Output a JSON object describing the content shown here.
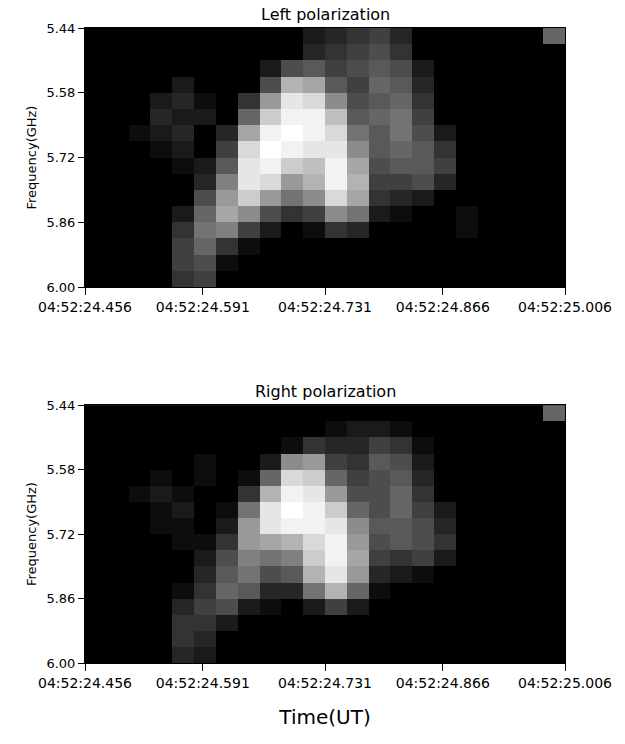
{
  "chart_data": [
    {
      "type": "heatmap",
      "title": "Left polarization",
      "y_label": "Frequency(GHz)",
      "color": "gray",
      "xlim": [
        24.456,
        25.006
      ],
      "xticks": [
        {
          "value": 24.456,
          "label": "04:52:24.456"
        },
        {
          "value": 24.591,
          "label": "04:52:24.591"
        },
        {
          "value": 24.731,
          "label": "04:52:24.731"
        },
        {
          "value": 24.866,
          "label": "04:52:24.866"
        },
        {
          "value": 25.006,
          "label": "04:52:25.006"
        }
      ],
      "ylim": [
        6.0,
        5.44
      ],
      "yticks": [
        5.44,
        5.58,
        5.72,
        5.86,
        {
          "value": 6.0,
          "label": "6.00"
        }
      ],
      "zlim": [
        0,
        100
      ],
      "x": [
        24.4685,
        24.4935,
        24.5185,
        24.5435,
        24.5685,
        24.5935,
        24.6185,
        24.6435,
        24.6685,
        24.6935,
        24.7185,
        24.7435,
        24.7685,
        24.7935,
        24.8185,
        24.8435,
        24.8685,
        24.8935,
        24.9185,
        24.9435,
        24.9685,
        24.9935
      ],
      "y": [
        5.4575,
        5.4925,
        5.5275,
        5.5625,
        5.5975,
        5.6325,
        5.6675,
        5.7025,
        5.7375,
        5.7725,
        5.8075,
        5.8425,
        5.8775,
        5.9125,
        5.9475,
        5.9825
      ],
      "z": [
        [
          0,
          0,
          0,
          0,
          0,
          0,
          0,
          0,
          0,
          0,
          10,
          15,
          20,
          25,
          15,
          0,
          0,
          0,
          0,
          0,
          0,
          40
        ],
        [
          0,
          0,
          0,
          0,
          0,
          0,
          0,
          0,
          0,
          0,
          15,
          20,
          25,
          30,
          20,
          0,
          0,
          0,
          0,
          0,
          0,
          0
        ],
        [
          0,
          0,
          0,
          0,
          0,
          0,
          0,
          0,
          10,
          30,
          35,
          25,
          30,
          35,
          30,
          10,
          0,
          0,
          0,
          0,
          0,
          0
        ],
        [
          0,
          0,
          0,
          0,
          10,
          0,
          0,
          0,
          30,
          70,
          65,
          35,
          25,
          40,
          35,
          15,
          0,
          0,
          0,
          0,
          0,
          0
        ],
        [
          0,
          0,
          0,
          10,
          15,
          5,
          0,
          20,
          60,
          90,
          85,
          55,
          30,
          35,
          40,
          20,
          0,
          0,
          0,
          0,
          0,
          0
        ],
        [
          0,
          0,
          0,
          15,
          10,
          10,
          0,
          40,
          80,
          95,
          95,
          75,
          35,
          40,
          45,
          25,
          0,
          0,
          0,
          0,
          0,
          0
        ],
        [
          0,
          0,
          5,
          10,
          15,
          0,
          15,
          65,
          95,
          100,
          95,
          85,
          45,
          35,
          45,
          30,
          10,
          0,
          0,
          0,
          0,
          0
        ],
        [
          0,
          0,
          0,
          5,
          10,
          0,
          25,
          85,
          100,
          95,
          90,
          90,
          55,
          35,
          40,
          35,
          20,
          0,
          0,
          0,
          0,
          0
        ],
        [
          0,
          0,
          0,
          0,
          5,
          10,
          35,
          90,
          95,
          80,
          75,
          95,
          65,
          30,
          35,
          35,
          25,
          0,
          0,
          0,
          0,
          0
        ],
        [
          0,
          0,
          0,
          0,
          0,
          15,
          50,
          90,
          85,
          60,
          70,
          95,
          70,
          25,
          25,
          30,
          15,
          0,
          0,
          0,
          0,
          0
        ],
        [
          0,
          0,
          0,
          0,
          0,
          30,
          60,
          80,
          60,
          45,
          55,
          85,
          65,
          20,
          15,
          10,
          0,
          0,
          0,
          0,
          0,
          0
        ],
        [
          0,
          0,
          0,
          0,
          10,
          40,
          65,
          55,
          30,
          20,
          25,
          55,
          45,
          10,
          5,
          0,
          0,
          5,
          0,
          0,
          0,
          0
        ],
        [
          0,
          0,
          0,
          0,
          20,
          45,
          50,
          25,
          10,
          0,
          5,
          20,
          15,
          0,
          0,
          0,
          0,
          5,
          0,
          0,
          0,
          0
        ],
        [
          0,
          0,
          0,
          0,
          25,
          40,
          20,
          5,
          0,
          0,
          0,
          0,
          0,
          0,
          0,
          0,
          0,
          0,
          0,
          0,
          0,
          0
        ],
        [
          0,
          0,
          0,
          0,
          25,
          30,
          5,
          0,
          0,
          0,
          0,
          0,
          0,
          0,
          0,
          0,
          0,
          0,
          0,
          0,
          0,
          0
        ],
        [
          0,
          0,
          0,
          0,
          20,
          25,
          0,
          0,
          0,
          0,
          0,
          0,
          0,
          0,
          0,
          0,
          0,
          0,
          0,
          0,
          0,
          0
        ]
      ]
    },
    {
      "type": "heatmap",
      "title": "Right polarization",
      "x_label": "Time(UT)",
      "y_label": "Frequency(GHz)",
      "color": "gray",
      "xlim": [
        24.456,
        25.006
      ],
      "xticks": [
        {
          "value": 24.456,
          "label": "04:52:24.456"
        },
        {
          "value": 24.591,
          "label": "04:52:24.591"
        },
        {
          "value": 24.731,
          "label": "04:52:24.731"
        },
        {
          "value": 24.866,
          "label": "04:52:24.866"
        },
        {
          "value": 25.006,
          "label": "04:52:25.006"
        }
      ],
      "ylim": [
        6.0,
        5.44
      ],
      "yticks": [
        5.44,
        5.58,
        5.72,
        5.86,
        {
          "value": 6.0,
          "label": "6.00"
        }
      ],
      "zlim": [
        0,
        100
      ],
      "x": [
        24.4685,
        24.4935,
        24.5185,
        24.5435,
        24.5685,
        24.5935,
        24.6185,
        24.6435,
        24.6685,
        24.6935,
        24.7185,
        24.7435,
        24.7685,
        24.7935,
        24.8185,
        24.8435,
        24.8685,
        24.8935,
        24.9185,
        24.9435,
        24.9685,
        24.9935
      ],
      "y": [
        5.4575,
        5.4925,
        5.5275,
        5.5625,
        5.5975,
        5.6325,
        5.6675,
        5.7025,
        5.7375,
        5.7725,
        5.8075,
        5.8425,
        5.8775,
        5.9125,
        5.9475,
        5.9825
      ],
      "z": [
        [
          0,
          0,
          0,
          0,
          0,
          0,
          0,
          0,
          0,
          0,
          0,
          0,
          0,
          0,
          0,
          0,
          0,
          0,
          0,
          0,
          0,
          40
        ],
        [
          0,
          0,
          0,
          0,
          0,
          0,
          0,
          0,
          0,
          0,
          0,
          5,
          10,
          10,
          5,
          0,
          0,
          0,
          0,
          0,
          0,
          0
        ],
        [
          0,
          0,
          0,
          0,
          0,
          0,
          0,
          0,
          0,
          5,
          20,
          15,
          15,
          25,
          20,
          5,
          0,
          0,
          0,
          0,
          0,
          0
        ],
        [
          0,
          0,
          0,
          0,
          0,
          5,
          0,
          0,
          10,
          55,
          60,
          25,
          20,
          35,
          30,
          10,
          0,
          0,
          0,
          0,
          0,
          0
        ],
        [
          0,
          0,
          0,
          5,
          0,
          5,
          0,
          5,
          40,
          85,
          80,
          40,
          25,
          30,
          35,
          15,
          0,
          0,
          0,
          0,
          0,
          0
        ],
        [
          0,
          0,
          5,
          10,
          5,
          0,
          0,
          20,
          70,
          95,
          90,
          60,
          30,
          30,
          40,
          20,
          0,
          0,
          0,
          0,
          0,
          0
        ],
        [
          0,
          0,
          0,
          5,
          10,
          0,
          5,
          45,
          90,
          100,
          95,
          80,
          40,
          30,
          40,
          25,
          10,
          0,
          0,
          0,
          0,
          0
        ],
        [
          0,
          0,
          0,
          5,
          5,
          0,
          10,
          60,
          90,
          95,
          95,
          90,
          55,
          35,
          35,
          30,
          15,
          0,
          0,
          0,
          0,
          0
        ],
        [
          0,
          0,
          0,
          0,
          5,
          5,
          20,
          60,
          65,
          70,
          85,
          95,
          60,
          30,
          35,
          30,
          20,
          0,
          0,
          0,
          0,
          0
        ],
        [
          0,
          0,
          0,
          0,
          0,
          10,
          30,
          50,
          45,
          50,
          80,
          95,
          65,
          25,
          20,
          25,
          10,
          0,
          0,
          0,
          0,
          0
        ],
        [
          0,
          0,
          0,
          0,
          0,
          15,
          35,
          45,
          30,
          35,
          70,
          90,
          60,
          15,
          10,
          5,
          0,
          0,
          0,
          0,
          0,
          0
        ],
        [
          0,
          0,
          0,
          0,
          5,
          20,
          40,
          35,
          15,
          15,
          45,
          70,
          40,
          5,
          0,
          0,
          0,
          0,
          0,
          0,
          0,
          0
        ],
        [
          0,
          0,
          0,
          0,
          15,
          25,
          30,
          10,
          5,
          0,
          10,
          25,
          10,
          0,
          0,
          0,
          0,
          0,
          0,
          0,
          0,
          0
        ],
        [
          0,
          0,
          0,
          0,
          20,
          20,
          10,
          0,
          0,
          0,
          0,
          0,
          0,
          0,
          0,
          0,
          0,
          0,
          0,
          0,
          0,
          0
        ],
        [
          0,
          0,
          0,
          0,
          20,
          15,
          0,
          0,
          0,
          0,
          0,
          0,
          0,
          0,
          0,
          0,
          0,
          0,
          0,
          0,
          0,
          0
        ],
        [
          0,
          0,
          0,
          0,
          15,
          10,
          0,
          0,
          0,
          0,
          0,
          0,
          0,
          0,
          0,
          0,
          0,
          0,
          0,
          0,
          0,
          0
        ]
      ]
    }
  ]
}
